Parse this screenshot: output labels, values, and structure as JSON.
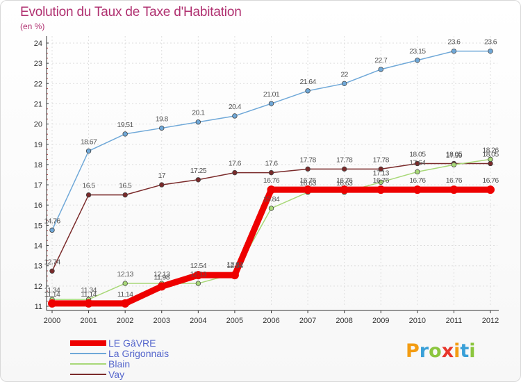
{
  "title": "Evolution du Taux de Taxe d'Habitation",
  "unit": "(en %)",
  "logo": {
    "letters": [
      "P",
      "r",
      "o",
      "x",
      "i",
      "t",
      "i"
    ],
    "colors": [
      "#f39c12",
      "#3aa0d8",
      "#8cc63f",
      "#e8362b",
      "#f39c12",
      "#3aa0d8",
      "#8cc63f"
    ]
  },
  "chart_data": {
    "type": "line",
    "x": [
      "2000",
      "2001",
      "2002",
      "2003",
      "2004",
      "2005",
      "2006",
      "2007",
      "2008",
      "2009",
      "2010",
      "2011",
      "2012"
    ],
    "ylim": [
      11,
      24
    ],
    "yticks": [
      "11",
      "12",
      "13",
      "14",
      "15",
      "16",
      "17",
      "18",
      "19",
      "20",
      "21",
      "22",
      "23",
      "24"
    ],
    "grid": true,
    "legend": "bottom-left",
    "series": [
      {
        "name": "La Grigonnais",
        "color": "#6fa8d8",
        "values": [
          14.76,
          18.67,
          19.51,
          19.8,
          20.1,
          20.4,
          21.01,
          21.64,
          22,
          22.7,
          23.15,
          23.6,
          23.6
        ],
        "labels": [
          "14.76",
          "18.67",
          "19.51",
          "19.8",
          "20.1",
          "20.4",
          "21.01",
          "21.64",
          "22",
          "22.7",
          "23.15",
          "23.6",
          "23.6"
        ]
      },
      {
        "name": "Vay",
        "color": "#7a2a2a",
        "values": [
          12.74,
          16.5,
          16.5,
          17,
          17.25,
          17.6,
          17.6,
          17.78,
          17.78,
          17.78,
          18.05,
          18.05,
          18.05
        ],
        "labels": [
          "12.74",
          "16.5",
          "16.5",
          "17",
          "17.25",
          "17.6",
          "17.6",
          "17.78",
          "17.78",
          "17.78",
          "18.05",
          "18.05",
          "18.05"
        ]
      },
      {
        "name": "Blain",
        "color": "#a8d878",
        "values": [
          11.34,
          11.34,
          12.13,
          12.13,
          12.13,
          12.62,
          15.84,
          16.63,
          16.63,
          17.13,
          17.64,
          17.99,
          18.26
        ],
        "labels": [
          "11.34",
          "11.34",
          "12.13",
          "12.13",
          "12.13",
          "12.62",
          "15.84",
          "16.63",
          "16.63",
          "17.13",
          "17.64",
          "17.99",
          "18.26"
        ]
      },
      {
        "name": "LE GâVRE",
        "color": "#ee0000",
        "values": [
          11.14,
          11.14,
          11.14,
          11.98,
          12.54,
          12.54,
          16.76,
          16.76,
          16.76,
          16.76,
          16.76,
          16.76,
          16.76
        ],
        "labels": [
          "11.14",
          "11.14",
          "11.14",
          "11.98",
          "12.54",
          "12.54",
          "16.76",
          "16.76",
          "16.76",
          "16.76",
          "16.76",
          "16.76",
          "16.76"
        ]
      }
    ],
    "legend_order": [
      "LE GâVRE",
      "La Grigonnais",
      "Blain",
      "Vay"
    ]
  }
}
